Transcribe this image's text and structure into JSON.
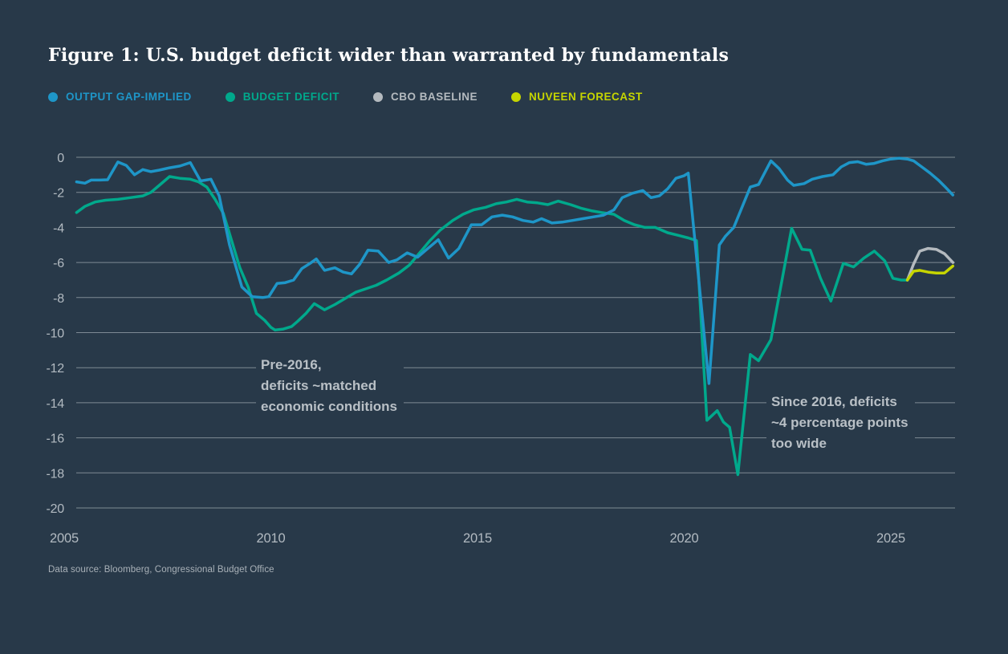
{
  "header": {
    "title": "Figure 1: U.S. budget deficit wider than warranted by fundamentals"
  },
  "legend": {
    "items": [
      {
        "label": "OUTPUT GAP-IMPLIED",
        "color": "#1e96c8"
      },
      {
        "label": "BUDGET DEFICIT",
        "color": "#00a98c"
      },
      {
        "label": "CBO BASELINE",
        "color": "#b4babf"
      },
      {
        "label": "NUVEEN FORECAST",
        "color": "#c6d500"
      }
    ]
  },
  "annotations": [
    {
      "id": "pre-2016",
      "lines": [
        "Pre-2016,",
        "deficits ~matched",
        "economic conditions"
      ]
    },
    {
      "id": "since-2016",
      "lines": [
        "Since 2016, deficits",
        "~4 percentage points",
        "too wide"
      ]
    }
  ],
  "footer": {
    "source": "Data source: Bloomberg, Congressional Budget Office"
  },
  "chart_data": {
    "type": "line",
    "title": "Figure 1: U.S. budget deficit wider than warranted by fundamentals",
    "xlabel": "",
    "ylabel": "",
    "legend_position": "top",
    "grid": true,
    "background": "#283949",
    "x_axis": {
      "ticks": [
        2005,
        2010,
        2015,
        2020,
        2025
      ],
      "range": [
        2005.3,
        2026.55
      ]
    },
    "y_axis": {
      "ticks": [
        0,
        -2,
        -4,
        -6,
        -8,
        -10,
        -12,
        -14,
        -16,
        -18,
        -20
      ],
      "range": [
        -20,
        0
      ]
    },
    "series": [
      {
        "name": "BUDGET DEFICIT",
        "color": "#00a98c",
        "points": [
          [
            2005.3,
            -3.15
          ],
          [
            2005.5,
            -2.8
          ],
          [
            2005.75,
            -2.55
          ],
          [
            2006.0,
            -2.45
          ],
          [
            2006.3,
            -2.4
          ],
          [
            2006.6,
            -2.3
          ],
          [
            2006.9,
            -2.2
          ],
          [
            2007.1,
            -2.0
          ],
          [
            2007.3,
            -1.6
          ],
          [
            2007.55,
            -1.1
          ],
          [
            2007.8,
            -1.2
          ],
          [
            2008.05,
            -1.25
          ],
          [
            2008.25,
            -1.4
          ],
          [
            2008.45,
            -1.7
          ],
          [
            2008.65,
            -2.4
          ],
          [
            2008.85,
            -3.2
          ],
          [
            2009.05,
            -4.75
          ],
          [
            2009.25,
            -6.3
          ],
          [
            2009.45,
            -7.4
          ],
          [
            2009.65,
            -8.9
          ],
          [
            2009.85,
            -9.3
          ],
          [
            2010.0,
            -9.7
          ],
          [
            2010.1,
            -9.85
          ],
          [
            2010.3,
            -9.8
          ],
          [
            2010.5,
            -9.65
          ],
          [
            2010.65,
            -9.35
          ],
          [
            2010.85,
            -8.9
          ],
          [
            2011.05,
            -8.35
          ],
          [
            2011.3,
            -8.7
          ],
          [
            2011.55,
            -8.4
          ],
          [
            2011.8,
            -8.05
          ],
          [
            2012.05,
            -7.7
          ],
          [
            2012.3,
            -7.5
          ],
          [
            2012.55,
            -7.3
          ],
          [
            2012.8,
            -7.0
          ],
          [
            2013.1,
            -6.6
          ],
          [
            2013.35,
            -6.15
          ],
          [
            2013.6,
            -5.45
          ],
          [
            2013.85,
            -4.75
          ],
          [
            2014.1,
            -4.15
          ],
          [
            2014.4,
            -3.6
          ],
          [
            2014.65,
            -3.25
          ],
          [
            2014.9,
            -3.0
          ],
          [
            2015.2,
            -2.85
          ],
          [
            2015.45,
            -2.65
          ],
          [
            2015.7,
            -2.55
          ],
          [
            2015.95,
            -2.4
          ],
          [
            2016.2,
            -2.55
          ],
          [
            2016.45,
            -2.6
          ],
          [
            2016.7,
            -2.7
          ],
          [
            2016.95,
            -2.5
          ],
          [
            2017.25,
            -2.7
          ],
          [
            2017.5,
            -2.9
          ],
          [
            2017.75,
            -3.05
          ],
          [
            2018.0,
            -3.15
          ],
          [
            2018.3,
            -3.25
          ],
          [
            2018.55,
            -3.6
          ],
          [
            2018.8,
            -3.85
          ],
          [
            2019.05,
            -4.0
          ],
          [
            2019.3,
            -4.0
          ],
          [
            2019.6,
            -4.3
          ],
          [
            2019.85,
            -4.45
          ],
          [
            2020.1,
            -4.6
          ],
          [
            2020.3,
            -4.75
          ],
          [
            2020.55,
            -15.0
          ],
          [
            2020.8,
            -14.45
          ],
          [
            2020.95,
            -15.1
          ],
          [
            2021.1,
            -15.4
          ],
          [
            2021.3,
            -18.1
          ],
          [
            2021.6,
            -11.25
          ],
          [
            2021.8,
            -11.6
          ],
          [
            2022.1,
            -10.4
          ],
          [
            2022.6,
            -4.05
          ],
          [
            2022.85,
            -5.25
          ],
          [
            2023.05,
            -5.3
          ],
          [
            2023.3,
            -6.9
          ],
          [
            2023.55,
            -8.2
          ],
          [
            2023.85,
            -6.05
          ],
          [
            2024.1,
            -6.25
          ],
          [
            2024.35,
            -5.75
          ],
          [
            2024.6,
            -5.35
          ],
          [
            2024.85,
            -5.9
          ],
          [
            2025.05,
            -6.9
          ],
          [
            2025.25,
            -7.0
          ],
          [
            2025.4,
            -7.0
          ]
        ]
      },
      {
        "name": "OUTPUT GAP-IMPLIED",
        "color": "#1e96c8",
        "points": [
          [
            2005.3,
            -1.4
          ],
          [
            2005.5,
            -1.48
          ],
          [
            2005.65,
            -1.3
          ],
          [
            2005.85,
            -1.3
          ],
          [
            2006.05,
            -1.28
          ],
          [
            2006.3,
            -0.27
          ],
          [
            2006.5,
            -0.46
          ],
          [
            2006.7,
            -1.0
          ],
          [
            2006.9,
            -0.7
          ],
          [
            2007.1,
            -0.82
          ],
          [
            2007.3,
            -0.73
          ],
          [
            2007.55,
            -0.6
          ],
          [
            2007.8,
            -0.5
          ],
          [
            2008.05,
            -0.3
          ],
          [
            2008.3,
            -1.35
          ],
          [
            2008.55,
            -1.25
          ],
          [
            2008.75,
            -2.2
          ],
          [
            2009.0,
            -5.0
          ],
          [
            2009.3,
            -7.4
          ],
          [
            2009.55,
            -7.95
          ],
          [
            2009.8,
            -8.0
          ],
          [
            2009.95,
            -7.95
          ],
          [
            2010.15,
            -7.2
          ],
          [
            2010.35,
            -7.15
          ],
          [
            2010.55,
            -7.0
          ],
          [
            2010.75,
            -6.35
          ],
          [
            2010.95,
            -6.05
          ],
          [
            2011.1,
            -5.8
          ],
          [
            2011.3,
            -6.45
          ],
          [
            2011.55,
            -6.3
          ],
          [
            2011.75,
            -6.55
          ],
          [
            2011.95,
            -6.65
          ],
          [
            2012.15,
            -6.1
          ],
          [
            2012.35,
            -5.3
          ],
          [
            2012.6,
            -5.35
          ],
          [
            2012.85,
            -6.0
          ],
          [
            2013.05,
            -5.85
          ],
          [
            2013.3,
            -5.45
          ],
          [
            2013.55,
            -5.7
          ],
          [
            2013.8,
            -5.2
          ],
          [
            2014.05,
            -4.7
          ],
          [
            2014.3,
            -5.75
          ],
          [
            2014.55,
            -5.2
          ],
          [
            2014.85,
            -3.85
          ],
          [
            2015.1,
            -3.85
          ],
          [
            2015.35,
            -3.4
          ],
          [
            2015.6,
            -3.3
          ],
          [
            2015.85,
            -3.4
          ],
          [
            2016.1,
            -3.6
          ],
          [
            2016.35,
            -3.7
          ],
          [
            2016.55,
            -3.5
          ],
          [
            2016.8,
            -3.75
          ],
          [
            2017.05,
            -3.7
          ],
          [
            2017.3,
            -3.6
          ],
          [
            2017.55,
            -3.5
          ],
          [
            2017.8,
            -3.4
          ],
          [
            2018.05,
            -3.3
          ],
          [
            2018.3,
            -3.0
          ],
          [
            2018.5,
            -2.3
          ],
          [
            2018.75,
            -2.05
          ],
          [
            2019.0,
            -1.9
          ],
          [
            2019.2,
            -2.3
          ],
          [
            2019.4,
            -2.2
          ],
          [
            2019.6,
            -1.8
          ],
          [
            2019.8,
            -1.2
          ],
          [
            2020.0,
            -1.05
          ],
          [
            2020.1,
            -0.9
          ],
          [
            2020.6,
            -12.9
          ],
          [
            2020.85,
            -5.0
          ],
          [
            2021.0,
            -4.5
          ],
          [
            2021.2,
            -4.0
          ],
          [
            2021.6,
            -1.7
          ],
          [
            2021.8,
            -1.55
          ],
          [
            2022.1,
            -0.2
          ],
          [
            2022.3,
            -0.65
          ],
          [
            2022.5,
            -1.3
          ],
          [
            2022.65,
            -1.6
          ],
          [
            2022.9,
            -1.5
          ],
          [
            2023.1,
            -1.25
          ],
          [
            2023.35,
            -1.1
          ],
          [
            2023.6,
            -1.0
          ],
          [
            2023.8,
            -0.55
          ],
          [
            2024.0,
            -0.3
          ],
          [
            2024.2,
            -0.25
          ],
          [
            2024.4,
            -0.4
          ],
          [
            2024.6,
            -0.35
          ],
          [
            2024.8,
            -0.2
          ],
          [
            2025.0,
            -0.1
          ],
          [
            2025.2,
            -0.05
          ],
          [
            2025.4,
            -0.1
          ],
          [
            2025.55,
            -0.2
          ],
          [
            2025.75,
            -0.55
          ],
          [
            2025.95,
            -0.9
          ],
          [
            2026.15,
            -1.3
          ],
          [
            2026.3,
            -1.65
          ],
          [
            2026.5,
            -2.15
          ]
        ]
      },
      {
        "name": "CBO BASELINE",
        "color": "#b4babf",
        "points": [
          [
            2025.4,
            -7.0
          ],
          [
            2025.55,
            -6.1
          ],
          [
            2025.7,
            -5.35
          ],
          [
            2025.9,
            -5.2
          ],
          [
            2026.1,
            -5.25
          ],
          [
            2026.3,
            -5.5
          ],
          [
            2026.5,
            -6.0
          ]
        ]
      },
      {
        "name": "NUVEEN FORECAST",
        "color": "#c6d500",
        "points": [
          [
            2025.4,
            -7.0
          ],
          [
            2025.55,
            -6.5
          ],
          [
            2025.7,
            -6.45
          ],
          [
            2025.9,
            -6.55
          ],
          [
            2026.1,
            -6.6
          ],
          [
            2026.3,
            -6.6
          ],
          [
            2026.5,
            -6.2
          ]
        ]
      }
    ]
  }
}
